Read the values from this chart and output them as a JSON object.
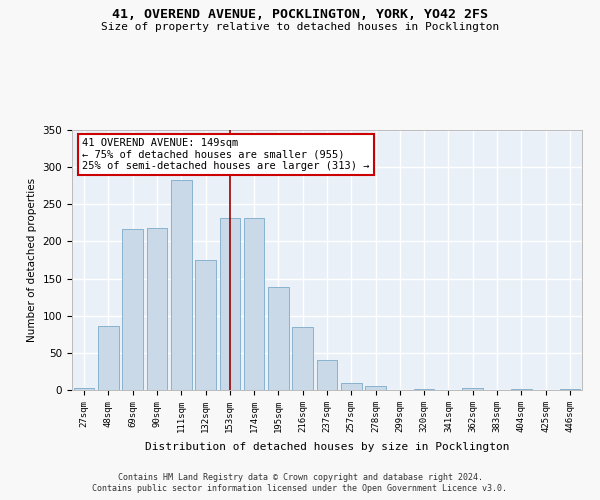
{
  "title_line1": "41, OVEREND AVENUE, POCKLINGTON, YORK, YO42 2FS",
  "title_line2": "Size of property relative to detached houses in Pocklington",
  "xlabel": "Distribution of detached houses by size in Pocklington",
  "ylabel": "Number of detached properties",
  "bar_color": "#c9d9e8",
  "bar_edge_color": "#7aaac8",
  "background_color": "#eaf0f8",
  "grid_color": "#ffffff",
  "vline_color": "#990000",
  "annotation_text": "41 OVEREND AVENUE: 149sqm\n← 75% of detached houses are smaller (955)\n25% of semi-detached houses are larger (313) →",
  "annotation_box_color": "#ffffff",
  "annotation_box_edge": "#cc0000",
  "categories": [
    "27sqm",
    "48sqm",
    "69sqm",
    "90sqm",
    "111sqm",
    "132sqm",
    "153sqm",
    "174sqm",
    "195sqm",
    "216sqm",
    "237sqm",
    "257sqm",
    "278sqm",
    "299sqm",
    "320sqm",
    "341sqm",
    "362sqm",
    "383sqm",
    "404sqm",
    "425sqm",
    "446sqm"
  ],
  "values": [
    3,
    86,
    217,
    218,
    283,
    175,
    232,
    232,
    138,
    85,
    40,
    10,
    5,
    0,
    2,
    0,
    3,
    0,
    1,
    0,
    2
  ],
  "ylim": [
    0,
    350
  ],
  "yticks": [
    0,
    50,
    100,
    150,
    200,
    250,
    300,
    350
  ],
  "fig_width": 6.0,
  "fig_height": 5.0,
  "dpi": 100,
  "footer_line1": "Contains HM Land Registry data © Crown copyright and database right 2024.",
  "footer_line2": "Contains public sector information licensed under the Open Government Licence v3.0."
}
